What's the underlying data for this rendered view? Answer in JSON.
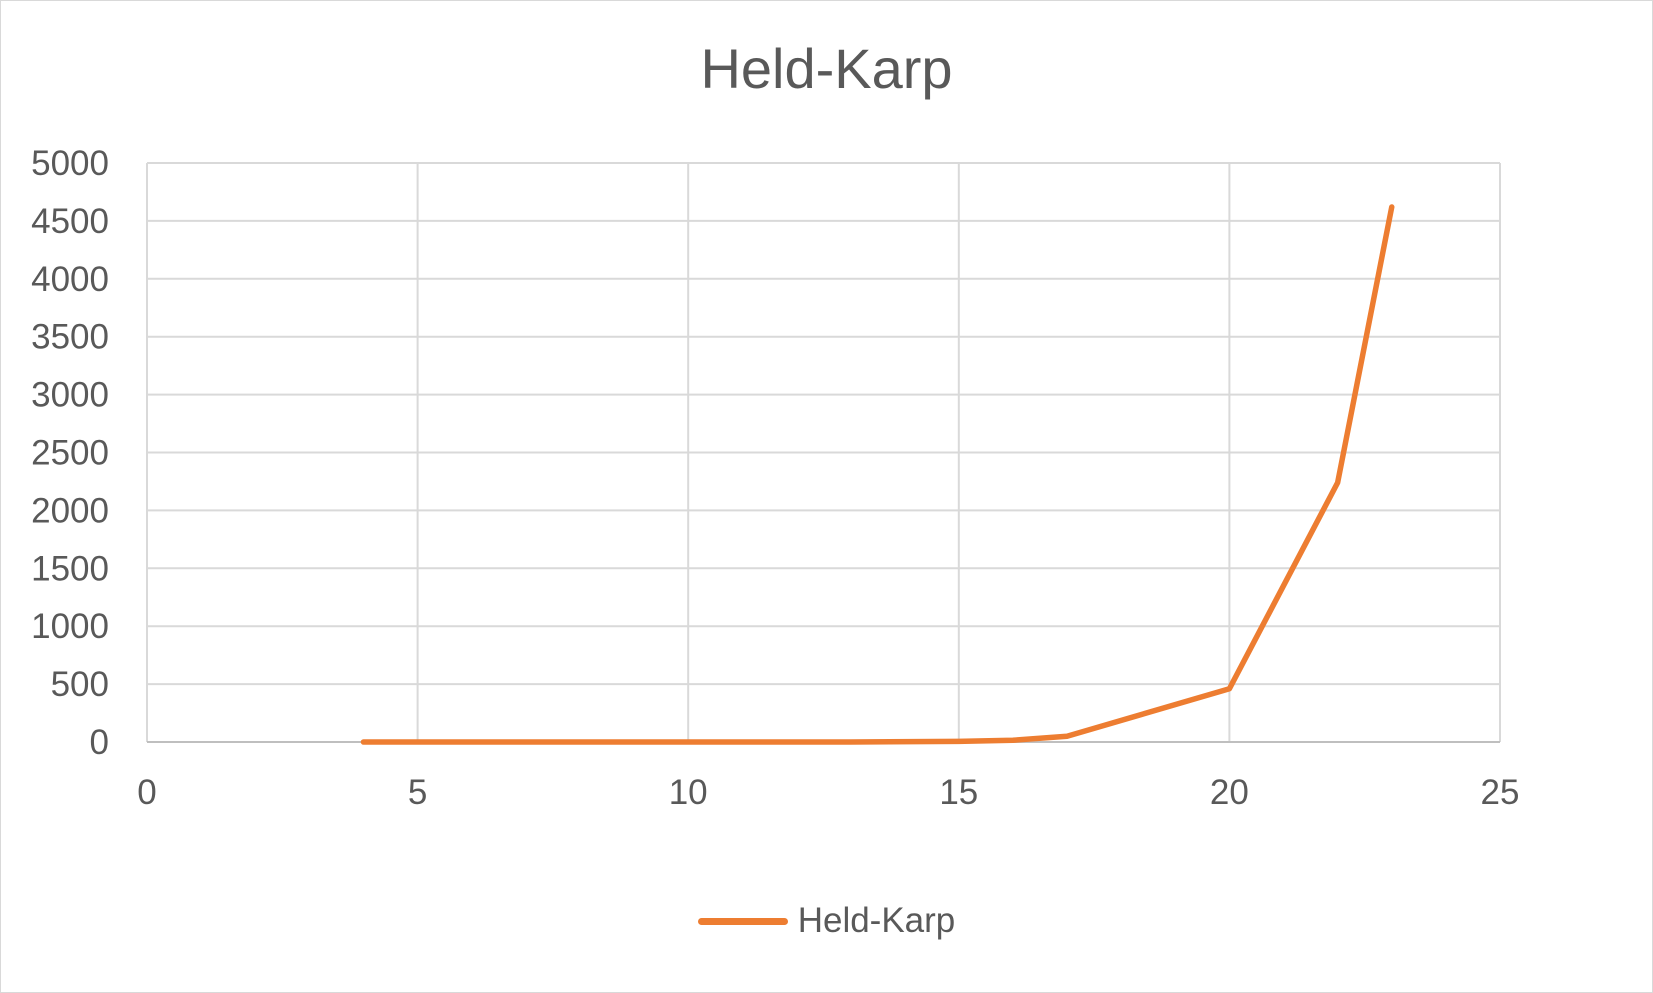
{
  "chart_data": {
    "type": "line",
    "title": "Held-Karp",
    "xlabel": "",
    "ylabel": "",
    "xlim": [
      0,
      25
    ],
    "ylim": [
      0,
      5000
    ],
    "x_ticks": [
      0,
      5,
      10,
      15,
      20,
      25
    ],
    "y_ticks": [
      0,
      500,
      1000,
      1500,
      2000,
      2500,
      3000,
      3500,
      4000,
      4500,
      5000
    ],
    "grid": true,
    "legend_position": "bottom",
    "series": [
      {
        "name": "Held-Karp",
        "color": "#ED7D31",
        "x": [
          4,
          8,
          13,
          15,
          16,
          17,
          20,
          22,
          23
        ],
        "y": [
          0,
          0,
          0,
          5,
          15,
          50,
          460,
          2240,
          4620
        ]
      }
    ]
  }
}
